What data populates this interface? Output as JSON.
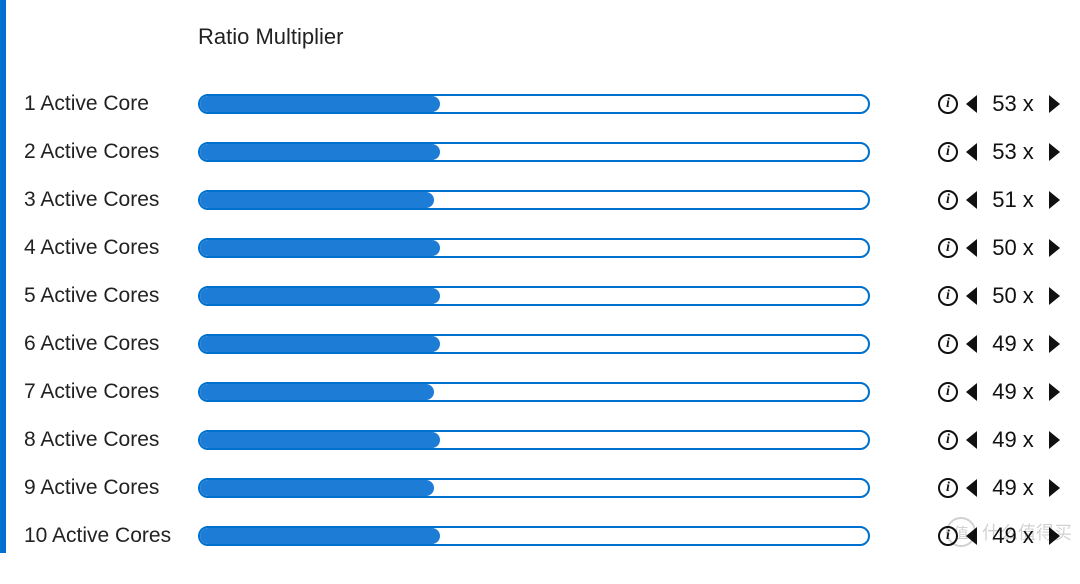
{
  "header": {
    "title": "Ratio Multiplier"
  },
  "slider": {
    "min": 0,
    "max": 100,
    "fill_color": "#1c7cd6",
    "border_color": "#0070d0",
    "track_color": "#ffffff"
  },
  "rows": [
    {
      "label": "1 Active Core",
      "value": 53,
      "unit": "x",
      "fill_percent": 36
    },
    {
      "label": "2 Active Cores",
      "value": 53,
      "unit": "x",
      "fill_percent": 36
    },
    {
      "label": "3 Active Cores",
      "value": 51,
      "unit": "x",
      "fill_percent": 35
    },
    {
      "label": "4 Active Cores",
      "value": 50,
      "unit": "x",
      "fill_percent": 36
    },
    {
      "label": "5 Active Cores",
      "value": 50,
      "unit": "x",
      "fill_percent": 36
    },
    {
      "label": "6 Active Cores",
      "value": 49,
      "unit": "x",
      "fill_percent": 36
    },
    {
      "label": "7 Active Cores",
      "value": 49,
      "unit": "x",
      "fill_percent": 35
    },
    {
      "label": "8 Active Cores",
      "value": 49,
      "unit": "x",
      "fill_percent": 36
    },
    {
      "label": "9 Active Cores",
      "value": 49,
      "unit": "x",
      "fill_percent": 35
    },
    {
      "label": "10 Active Cores",
      "value": 49,
      "unit": "x",
      "fill_percent": 36
    }
  ],
  "watermark": {
    "badge": "值",
    "text": "什么值得买"
  }
}
